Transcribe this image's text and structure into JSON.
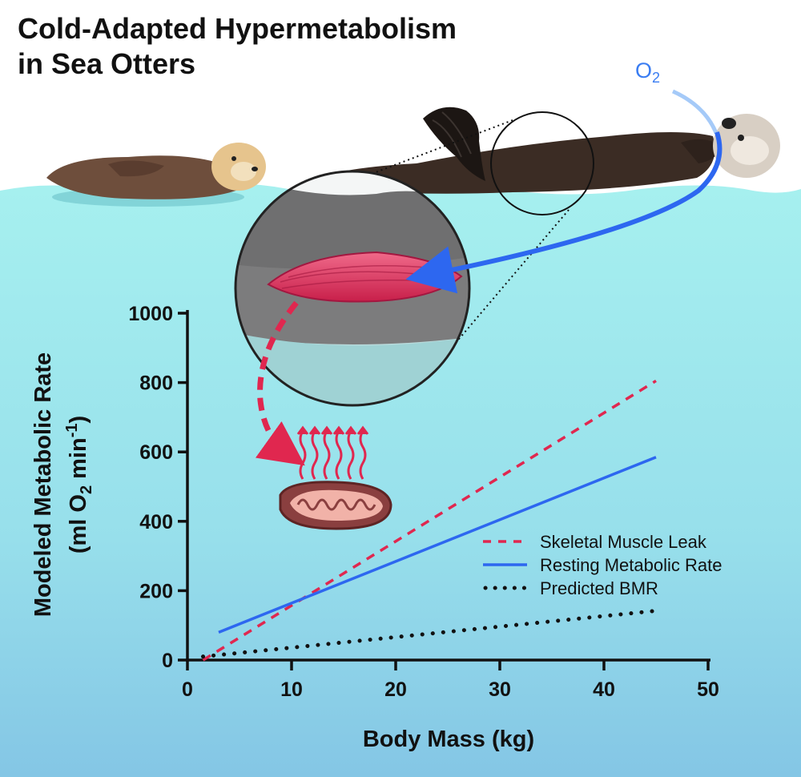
{
  "title": {
    "line1": "Cold-Adapted Hypermetabolism",
    "line2": "in Sea Otters"
  },
  "o2_label": {
    "main": "O",
    "sub": "2"
  },
  "colors": {
    "water_top": "#a4efee",
    "water_bottom": "#86c9e6",
    "muscle_leak": "#e0274f",
    "rmr": "#2d67f0",
    "bmr": "#111111",
    "o2": "#3a7df2",
    "otter_fur": "#3b2c24",
    "pup_fur": "#6e4e3c"
  },
  "icons": [
    "adult-sea-otter",
    "sea-otter-pup",
    "muscle-magnifier",
    "mitochondrion",
    "heat-wave-arrows",
    "oxygen-flow-arrow",
    "leak-dashed-arrow"
  ],
  "chart_data": {
    "type": "line",
    "xlabel": "Body Mass (kg)",
    "ylabel": "Modeled Metabolic Rate",
    "ylabel_units": {
      "pre": "(ml O",
      "sub1": "2",
      "mid": " min",
      "sup": "-1",
      "post": ")"
    },
    "xlim": [
      0,
      50
    ],
    "ylim": [
      0,
      1000
    ],
    "x_ticks": [
      0,
      10,
      20,
      30,
      40,
      50
    ],
    "y_ticks": [
      0,
      200,
      400,
      600,
      800,
      1000
    ],
    "grid": false,
    "legend_position": "bottom-right",
    "series": [
      {
        "name": "Skeletal Muscle Leak",
        "style": "dashed",
        "color": "#e0274f",
        "x": [
          1.5,
          45
        ],
        "y": [
          0,
          805
        ]
      },
      {
        "name": "Resting Metabolic Rate",
        "style": "solid",
        "color": "#2d67f0",
        "x": [
          3,
          45
        ],
        "y": [
          80,
          585
        ]
      },
      {
        "name": "Predicted BMR",
        "style": "dotted",
        "color": "#111111",
        "x": [
          1.5,
          45
        ],
        "y": [
          10,
          142
        ]
      }
    ]
  }
}
